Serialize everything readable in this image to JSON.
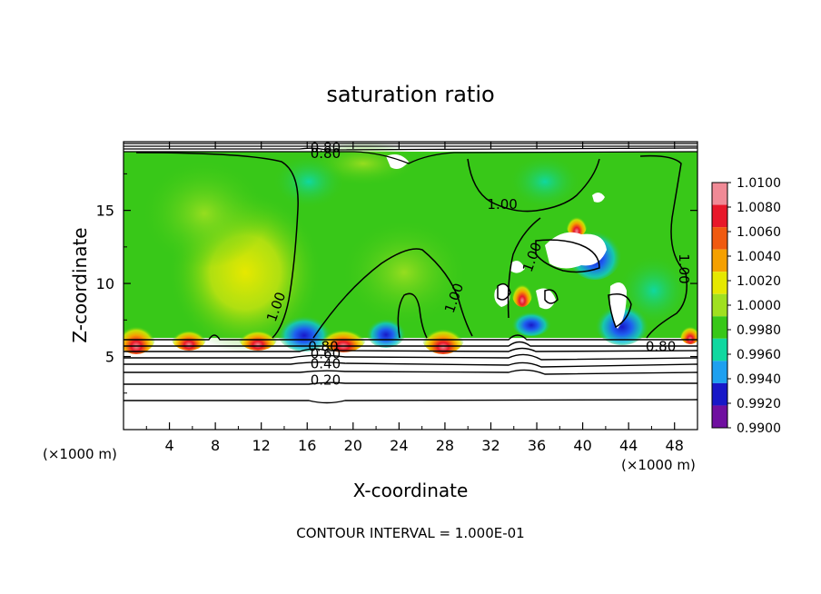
{
  "chart_data": {
    "type": "heatmap",
    "title": "saturation ratio",
    "xlabel": "X-coordinate",
    "ylabel": "Z-coordinate",
    "x_unit_label": "(×1000 m)",
    "x_unit_label_right": "(×1000 m)",
    "xlim": [
      0,
      50
    ],
    "ylim": [
      0,
      19.7
    ],
    "x_ticks": [
      4,
      8,
      12,
      16,
      20,
      24,
      28,
      32,
      36,
      40,
      44,
      48
    ],
    "y_ticks": [
      5,
      10,
      15
    ],
    "footer": "CONTOUR INTERVAL = 1.000E-01",
    "colorbar": {
      "levels": [
        "1.0100",
        "1.0080",
        "1.0060",
        "1.0040",
        "1.0020",
        "1.0000",
        "0.9980",
        "0.9960",
        "0.9940",
        "0.9920",
        "0.9900"
      ],
      "colors": [
        "#f08a96",
        "#e8182a",
        "#f05a10",
        "#f5a000",
        "#e6e800",
        "#a0e020",
        "#38c818",
        "#10d8a0",
        "#1ea0f0",
        "#1818c8",
        "#7010a0"
      ]
    },
    "contour_labels": [
      {
        "text": "0.80",
        "x": 17.6,
        "y": 19.3
      },
      {
        "text": "0.80",
        "x": 17.6,
        "y": 18.9
      },
      {
        "text": "1.00",
        "x": 33.0,
        "y": 15.4
      },
      {
        "text": "1.00",
        "x": 35.6,
        "y": 11.8
      },
      {
        "text": "1.00",
        "x": 13.3,
        "y": 8.4
      },
      {
        "text": "1.00",
        "x": 28.8,
        "y": 9.0
      },
      {
        "text": "1.00",
        "x": 48.8,
        "y": 11.0
      },
      {
        "text": "0.80",
        "x": 17.4,
        "y": 5.7
      },
      {
        "text": "0.60",
        "x": 17.6,
        "y": 5.2
      },
      {
        "text": "0.40",
        "x": 17.6,
        "y": 4.5
      },
      {
        "text": "0.20",
        "x": 17.6,
        "y": 3.4
      },
      {
        "text": "0.80",
        "x": 46.8,
        "y": 5.7
      }
    ]
  }
}
